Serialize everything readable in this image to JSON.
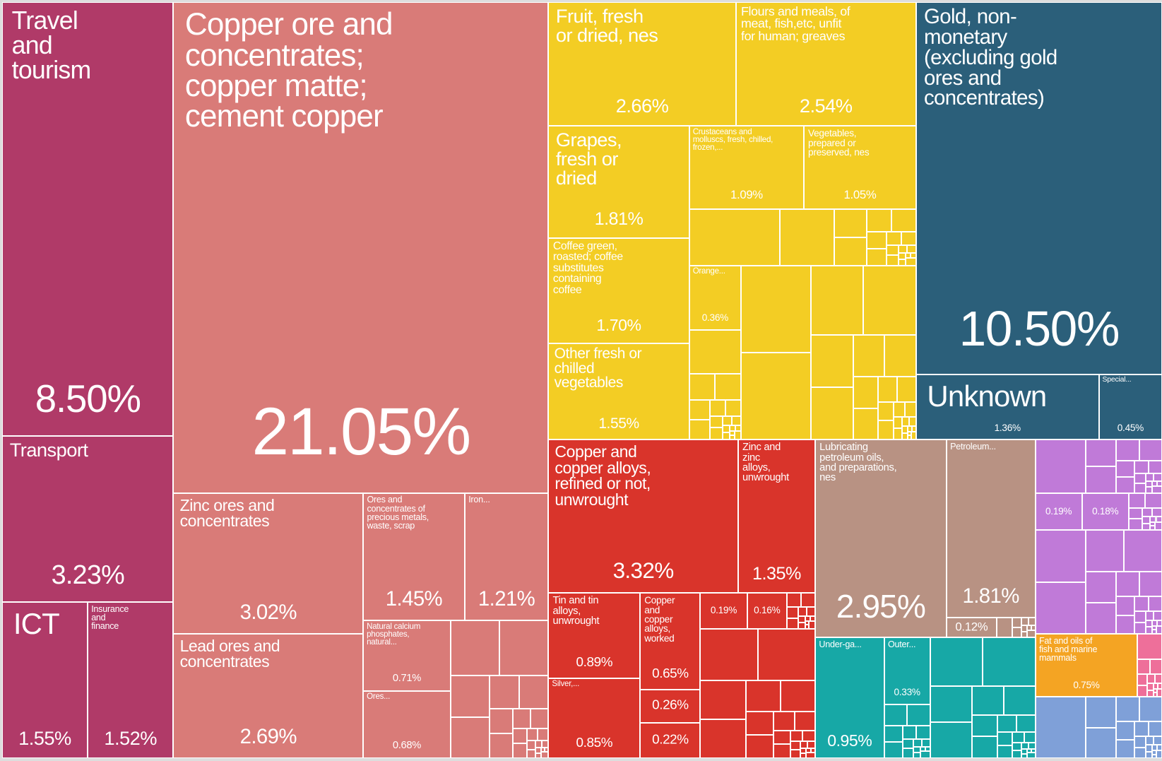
{
  "chart_data": {
    "type": "treemap",
    "categories": [
      "Travel and tourism",
      "Transport",
      "ICT",
      "Insurance and finance",
      "Copper ore and concentrates; copper matte; cement copper",
      "Zinc ores and concentrates",
      "Lead ores and concentrates",
      "Ores and concentrates of precious metals, waste, scrap",
      "Iron...",
      "Natural calcium phosphates, natural...",
      "Ores...",
      "Fruit, fresh or dried, nes",
      "Flours and meals, of meat, fish,etc, unfit for human; greaves",
      "Grapes, fresh or dried",
      "Crustaceans and molluscs, fresh, chilled, frozen,...",
      "Vegetables, prepared or preserved, nes",
      "Coffee green, roasted; coffee substitutes containing coffee",
      "Other fresh or chilled vegetables",
      "Orange...",
      "Gold, non-monetary (excluding gold ores and concentrates)",
      "Unknown",
      "Special...",
      "Copper and copper alloys, refined or not, unwrought",
      "Zinc and zinc alloys, unwrought",
      "Tin and tin alloys, unwrought",
      "Silver,...",
      "Copper and copper alloys, worked",
      null,
      null,
      null,
      null,
      "Lubricating petroleum oils, and preparations, nes",
      "Petroleum...",
      null,
      "Under-ga...",
      "Outer...",
      null,
      null,
      "Fat and oils of fish and marine mammals"
    ],
    "values": [
      8.5,
      3.23,
      1.55,
      1.52,
      21.05,
      3.02,
      2.69,
      1.45,
      1.21,
      0.71,
      0.68,
      2.66,
      2.54,
      1.81,
      1.09,
      1.05,
      1.7,
      1.55,
      0.36,
      10.5,
      1.36,
      0.45,
      3.32,
      1.35,
      0.89,
      0.85,
      0.65,
      0.26,
      0.22,
      0.19,
      0.16,
      2.95,
      1.81,
      0.12,
      0.95,
      0.33,
      0.19,
      0.18,
      0.75
    ],
    "value_labels": [
      "8.50%",
      "3.23%",
      "1.55%",
      "1.52%",
      "21.05%",
      "3.02%",
      "2.69%",
      "1.45%",
      "1.21%",
      "0.71%",
      "0.68%",
      "2.66%",
      "2.54%",
      "1.81%",
      "1.09%",
      "1.05%",
      "1.70%",
      "1.55%",
      "0.36%",
      "10.50%",
      "1.36%",
      "0.45%",
      "3.32%",
      "1.35%",
      "0.89%",
      "0.85%",
      "0.65%",
      "0.26%",
      "0.22%",
      "0.19%",
      "0.16%",
      "2.95%",
      "1.81%",
      "0.12%",
      "0.95%",
      "0.33%",
      "0.19%",
      "0.18%",
      "0.75%"
    ],
    "colors": [
      "#b03a68",
      "#b03a68",
      "#b03a68",
      "#b03a68",
      "#d97b78",
      "#d97b78",
      "#d97b78",
      "#d97b78",
      "#d97b78",
      "#d97b78",
      "#d97b78",
      "#f3cd24",
      "#f3cd24",
      "#f3cd24",
      "#f3cd24",
      "#f3cd24",
      "#f3cd24",
      "#f3cd24",
      "#f3cd24",
      "#2b5f7a",
      "#2b5f7a",
      "#2b5f7a",
      "#d9342b",
      "#d9342b",
      "#d9342b",
      "#d9342b",
      "#d9342b",
      "#d9342b",
      "#d9342b",
      "#d9342b",
      "#d9342b",
      "#b89283",
      "#b89283",
      "#b89283",
      "#17a8a6",
      "#17a8a6",
      "#c07ad8",
      "#c07ad8",
      "#f4a423"
    ]
  }
}
